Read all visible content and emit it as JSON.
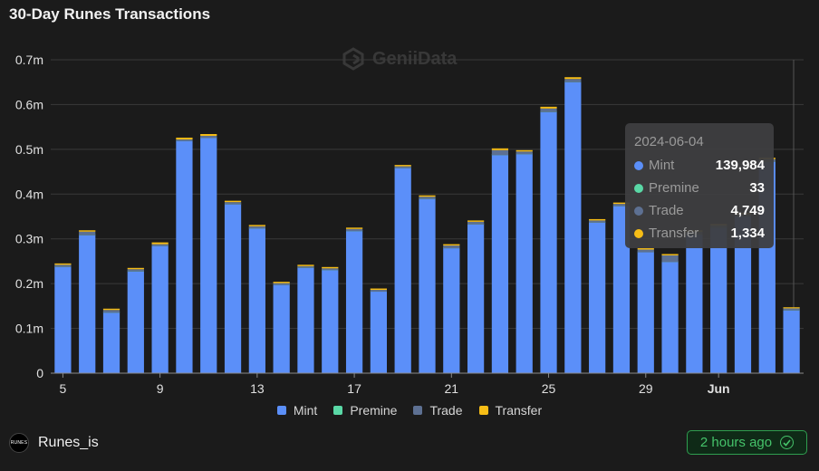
{
  "title": "30-Day Runes Transactions",
  "watermark": "GeniiData",
  "colors": {
    "background": "#1b1b1b",
    "mint": "#5b8ff9",
    "premine": "#5ad8a6",
    "trade": "#5d7092",
    "transfer": "#f6bd16",
    "grid": "#3a3a3a"
  },
  "chart_data": {
    "type": "bar",
    "stacked": true,
    "ylim": [
      0,
      700000
    ],
    "y_ticks": [
      {
        "value": 0,
        "label": "0"
      },
      {
        "value": 100000,
        "label": "0.1m"
      },
      {
        "value": 200000,
        "label": "0.2m"
      },
      {
        "value": 300000,
        "label": "0.3m"
      },
      {
        "value": 400000,
        "label": "0.4m"
      },
      {
        "value": 500000,
        "label": "0.5m"
      },
      {
        "value": 600000,
        "label": "0.6m"
      },
      {
        "value": 700000,
        "label": "0.7m"
      }
    ],
    "categories": [
      "2024-05-05",
      "2024-05-06",
      "2024-05-07",
      "2024-05-08",
      "2024-05-09",
      "2024-05-10",
      "2024-05-11",
      "2024-05-12",
      "2024-05-13",
      "2024-05-14",
      "2024-05-15",
      "2024-05-16",
      "2024-05-17",
      "2024-05-18",
      "2024-05-19",
      "2024-05-20",
      "2024-05-21",
      "2024-05-22",
      "2024-05-23",
      "2024-05-24",
      "2024-05-25",
      "2024-05-26",
      "2024-05-27",
      "2024-05-28",
      "2024-05-29",
      "2024-05-30",
      "2024-05-31",
      "2024-06-01",
      "2024-06-02",
      "2024-06-03",
      "2024-06-04"
    ],
    "x_tick_labels": [
      {
        "index": 0,
        "label": "5"
      },
      {
        "index": 4,
        "label": "9"
      },
      {
        "index": 8,
        "label": "13"
      },
      {
        "index": 12,
        "label": "17"
      },
      {
        "index": 16,
        "label": "21"
      },
      {
        "index": 20,
        "label": "25"
      },
      {
        "index": 24,
        "label": "29"
      },
      {
        "index": 27,
        "label": "Jun"
      }
    ],
    "series": [
      {
        "name": "Mint",
        "color": "#5b8ff9",
        "values": [
          237000,
          308000,
          135000,
          227000,
          284000,
          518000,
          525000,
          377000,
          323000,
          197000,
          235000,
          230000,
          317000,
          182000,
          458000,
          389000,
          279000,
          332000,
          487000,
          489000,
          583000,
          650000,
          336000,
          373000,
          270000,
          248000,
          310000,
          325000,
          350000,
          472000,
          139984
        ]
      },
      {
        "name": "Premine",
        "color": "#5ad8a6",
        "values": [
          100,
          100,
          100,
          100,
          100,
          100,
          100,
          100,
          100,
          100,
          100,
          100,
          100,
          100,
          100,
          100,
          100,
          100,
          100,
          100,
          100,
          100,
          100,
          100,
          100,
          100,
          100,
          100,
          100,
          100,
          33
        ]
      },
      {
        "name": "Trade",
        "color": "#5d7092",
        "values": [
          5000,
          8000,
          6000,
          5000,
          4000,
          4000,
          5000,
          5000,
          5000,
          4000,
          4000,
          4000,
          5000,
          4000,
          4000,
          5000,
          6000,
          6000,
          11000,
          6000,
          8000,
          7000,
          5000,
          5000,
          6000,
          15000,
          6000,
          5000,
          5000,
          6000,
          4749
        ]
      },
      {
        "name": "Transfer",
        "color": "#f6bd16",
        "values": [
          3000,
          3000,
          3000,
          3000,
          4000,
          4000,
          4000,
          3000,
          3000,
          3000,
          3000,
          3000,
          3000,
          3000,
          3000,
          3000,
          3000,
          3000,
          4000,
          3000,
          4000,
          4000,
          3000,
          3000,
          3000,
          3000,
          3000,
          3000,
          3000,
          3000,
          1334
        ]
      }
    ],
    "legend": {
      "position": "bottom-center",
      "items": [
        "Mint",
        "Premine",
        "Trade",
        "Transfer"
      ]
    },
    "grid": true
  },
  "tooltip": {
    "date": "2024-06-04",
    "rows": [
      {
        "name": "Mint",
        "value": "139,984",
        "color": "#5b8ff9"
      },
      {
        "name": "Premine",
        "value": "33",
        "color": "#5ad8a6"
      },
      {
        "name": "Trade",
        "value": "4,749",
        "color": "#5d7092"
      },
      {
        "name": "Transfer",
        "value": "1,334",
        "color": "#f6bd16"
      }
    ]
  },
  "footer": {
    "brand": "Runes_is",
    "logo_text": "RUNES",
    "updated": "2 hours ago"
  }
}
